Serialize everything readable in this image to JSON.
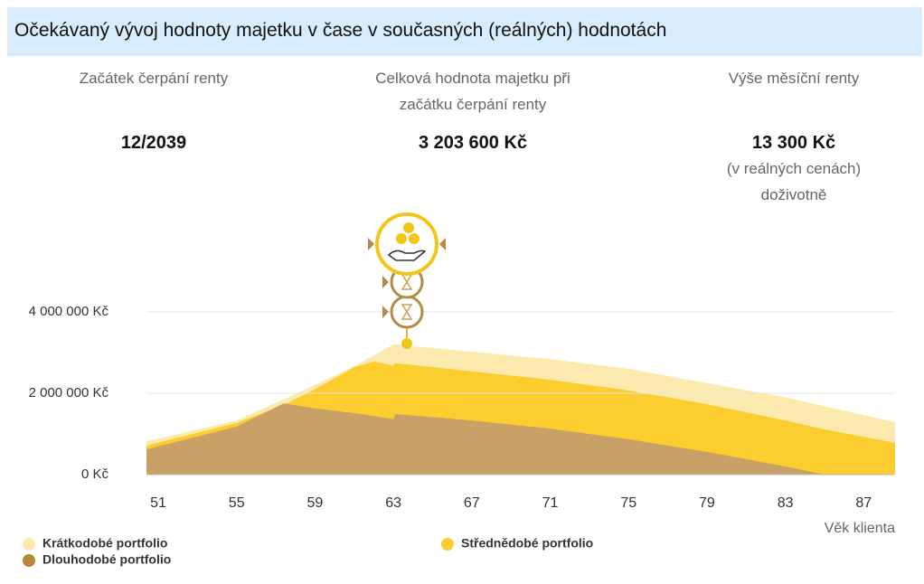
{
  "header": {
    "title": "Očekávaný vývoj hodnoty majetku v čase v současných (reálných) hodnotách"
  },
  "summary": [
    {
      "label": [
        "Začátek čerpání renty"
      ],
      "value": "12/2039",
      "note": []
    },
    {
      "label": [
        "Celková hodnota majetku při",
        "začátku čerpání renty"
      ],
      "value": "3 203 600 Kč",
      "note": []
    },
    {
      "label": [
        "Výše měsíční renty"
      ],
      "value": "13 300 Kč",
      "note": [
        "(v reálných cenách)",
        "doživotně"
      ]
    }
  ],
  "chart_data": {
    "type": "area",
    "x_label": "Věk klienta",
    "x": [
      50.4,
      55,
      57.4,
      59,
      61,
      62,
      63,
      63.1,
      67,
      71,
      75,
      79,
      83,
      85,
      88.6
    ],
    "series": [
      {
        "name": "Krátkodobé portfolio",
        "color": "#fce9ad",
        "values": [
          820000,
          1330000,
          1850000,
          2200000,
          2670000,
          2930000,
          3200000,
          3200000,
          3020000,
          2840000,
          2600000,
          2250000,
          1900000,
          1680000,
          1290000
        ]
      },
      {
        "name": "Střednědobé portfolio",
        "color": "#fbcd2e",
        "values": [
          710000,
          1270000,
          1710000,
          2100000,
          2640000,
          2780000,
          2680000,
          2740000,
          2540000,
          2330000,
          2070000,
          1730000,
          1330000,
          1110000,
          780000
        ]
      },
      {
        "name": "Dlouhodobé portfolio",
        "color": "#c9a066",
        "values": [
          620000,
          1180000,
          1750000,
          1630000,
          1510000,
          1440000,
          1360000,
          1490000,
          1330000,
          1130000,
          870000,
          560000,
          200000,
          0,
          0
        ]
      }
    ],
    "xlim": [
      50.4,
      88.6
    ],
    "xticks": [
      51,
      55,
      59,
      63,
      67,
      71,
      75,
      79,
      83,
      87
    ],
    "ylim": [
      0,
      4000000
    ],
    "yticks": [
      {
        "value": 0,
        "label": "0 Kč"
      },
      {
        "value": 2000000,
        "label": "2 000 000 Kč"
      },
      {
        "value": 4000000,
        "label": "4 000 000 Kč"
      }
    ],
    "grid": true
  }
}
